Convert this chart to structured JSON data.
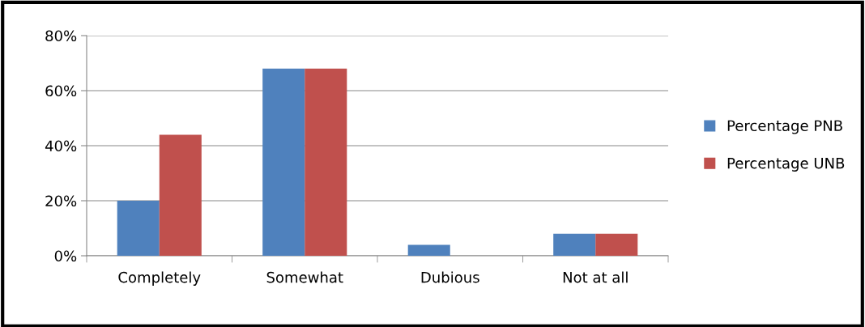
{
  "chart_data": {
    "type": "bar",
    "categories": [
      "Completely",
      "Somewhat",
      "Dubious",
      "Not at all"
    ],
    "series": [
      {
        "name": "Percentage PNB",
        "color": "#4f81bd",
        "values": [
          20,
          68,
          4,
          8
        ]
      },
      {
        "name": "Percentage UNB",
        "color": "#c0504d",
        "values": [
          44,
          68,
          0,
          8
        ]
      }
    ],
    "ylim": [
      0,
      80
    ],
    "yticks": [
      {
        "value": 0,
        "label": "0%"
      },
      {
        "value": 20,
        "label": "20%"
      },
      {
        "value": 40,
        "label": "40%"
      },
      {
        "value": 60,
        "label": "60%"
      },
      {
        "value": 80,
        "label": "80%"
      }
    ],
    "grid": "y",
    "legend": "right"
  }
}
